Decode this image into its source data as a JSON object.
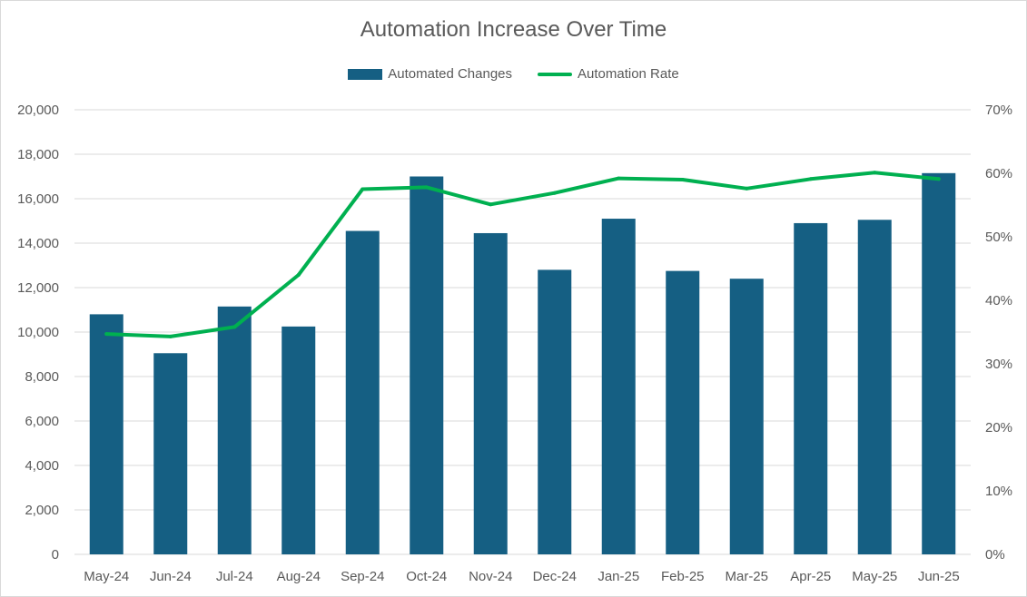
{
  "chart_data": {
    "type": "bar",
    "title": "Automation Increase Over Time",
    "categories": [
      "May-24",
      "Jun-24",
      "Jul-24",
      "Aug-24",
      "Sep-24",
      "Oct-24",
      "Nov-24",
      "Dec-24",
      "Jan-25",
      "Feb-25",
      "Mar-25",
      "Apr-25",
      "May-25",
      "Jun-25"
    ],
    "series": [
      {
        "name": "Automated Changes",
        "type": "bar",
        "axis": "primary",
        "color": "#155f83",
        "values": [
          10800,
          9050,
          11150,
          10250,
          14550,
          17000,
          14450,
          12800,
          15100,
          12750,
          12400,
          14900,
          15050,
          17150
        ]
      },
      {
        "name": "Automation Rate",
        "type": "line",
        "axis": "secondary",
        "color": "#00b050",
        "values": [
          0.347,
          0.343,
          0.358,
          0.44,
          0.575,
          0.578,
          0.551,
          0.569,
          0.592,
          0.59,
          0.576,
          0.591,
          0.601,
          0.591
        ]
      }
    ],
    "primary_axis": {
      "ylim": [
        0,
        20000
      ],
      "ticks": [
        "0",
        "2,000",
        "4,000",
        "6,000",
        "8,000",
        "10,000",
        "12,000",
        "14,000",
        "16,000",
        "18,000",
        "20,000"
      ]
    },
    "secondary_axis": {
      "ylim": [
        0,
        0.7
      ],
      "ticks": [
        "0%",
        "10%",
        "20%",
        "30%",
        "40%",
        "50%",
        "60%",
        "70%"
      ]
    },
    "grid": true,
    "legend": "top-center"
  }
}
